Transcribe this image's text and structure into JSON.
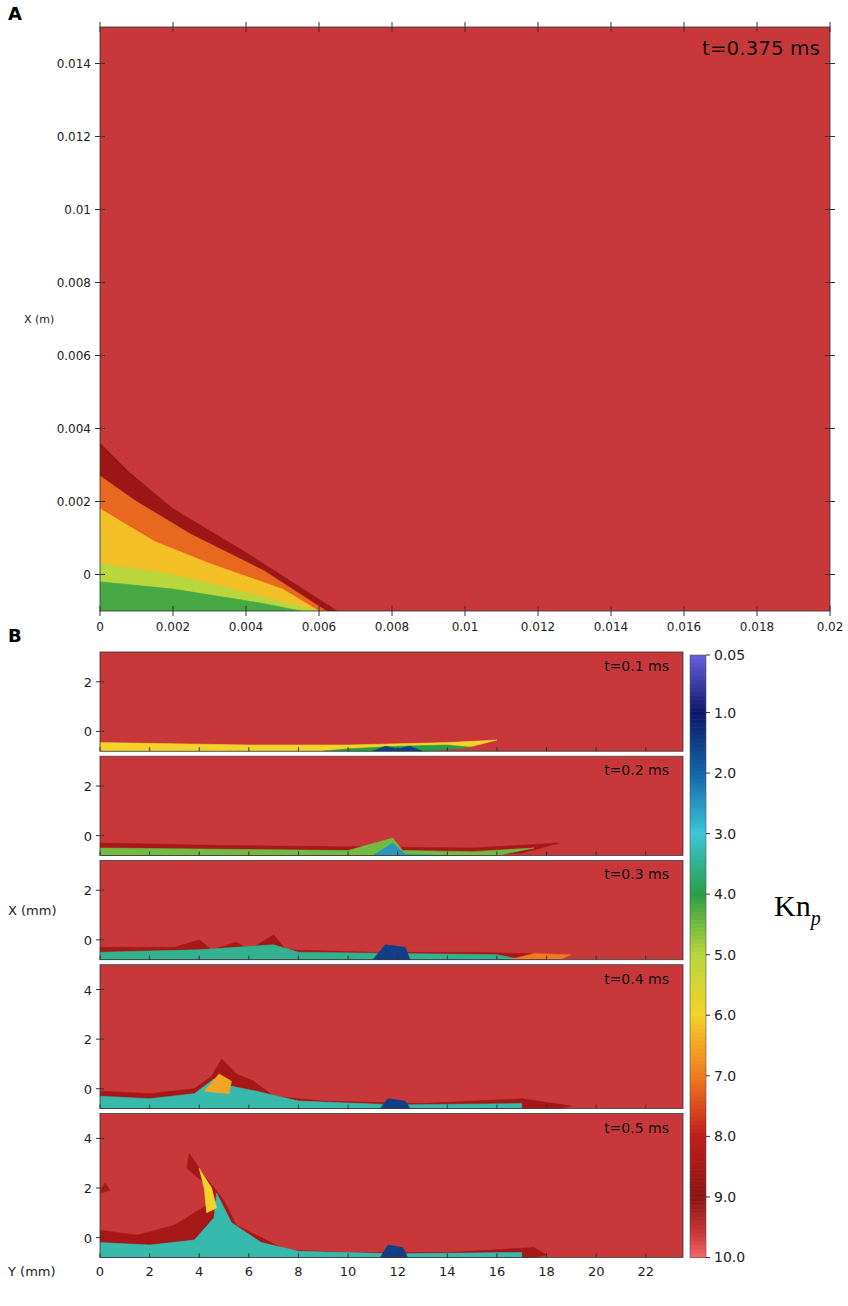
{
  "chart_data": [
    {
      "type": "contour",
      "label": "A",
      "annotation": "t=0.375 ms",
      "ylabel": "X (m)",
      "xlim": [
        0,
        0.02
      ],
      "xticks": [
        0,
        0.002,
        0.004,
        0.006,
        0.008,
        0.01,
        0.012,
        0.014,
        0.016,
        0.018,
        0.02
      ],
      "ylim": [
        -0.001,
        0.015
      ],
      "yticks": [
        0,
        0.002,
        0.004,
        0.006,
        0.008,
        0.01,
        0.012,
        0.014
      ],
      "background": 9.6,
      "regions": [
        {
          "value": 8.7,
          "points": [
            [
              0,
              -0.001
            ],
            [
              0,
              0.0036
            ],
            [
              0.0008,
              0.0028
            ],
            [
              0.002,
              0.0018
            ],
            [
              0.004,
              0.0006
            ],
            [
              0.0065,
              -0.001
            ]
          ]
        },
        {
          "value": 7.2,
          "points": [
            [
              0,
              -0.001
            ],
            [
              0,
              0.0027
            ],
            [
              0.001,
              0.002
            ],
            [
              0.0025,
              0.0011
            ],
            [
              0.0045,
              0.0001
            ],
            [
              0.0062,
              -0.001
            ]
          ]
        },
        {
          "value": 6.2,
          "points": [
            [
              0,
              -0.001
            ],
            [
              0,
              0.0018
            ],
            [
              0.0015,
              0.0009
            ],
            [
              0.003,
              0.0003
            ],
            [
              0.005,
              -0.0004
            ],
            [
              0.006,
              -0.001
            ]
          ]
        },
        {
          "value": 5.0,
          "points": [
            [
              0,
              -0.001
            ],
            [
              0,
              0.0003
            ],
            [
              0.002,
              0
            ],
            [
              0.004,
              -0.0005
            ],
            [
              0.006,
              -0.001
            ]
          ]
        },
        {
          "value": 4.2,
          "points": [
            [
              0,
              -0.001
            ],
            [
              0,
              -0.0002
            ],
            [
              0.002,
              -0.0004
            ],
            [
              0.0045,
              -0.0008
            ],
            [
              0.0055,
              -0.001
            ]
          ]
        }
      ]
    },
    {
      "type": "contour",
      "label": "B",
      "xlabel": "Y (mm)",
      "ylabel": "X (mm)",
      "xlim": [
        0,
        23.5
      ],
      "xticks": [
        0,
        2,
        4,
        6,
        8,
        10,
        12,
        14,
        16,
        18,
        20,
        22
      ],
      "colorbar": {
        "label": "Kn",
        "label_subscript": "p",
        "lim": [
          0.05,
          10
        ],
        "ticks": [
          0.05,
          {
            "value": 1,
            "label": "1.0"
          },
          {
            "value": 2,
            "label": "2.0"
          },
          {
            "value": 3,
            "label": "3.0"
          },
          {
            "value": 4,
            "label": "4.0"
          },
          {
            "value": 5,
            "label": "5.0"
          },
          {
            "value": 6,
            "label": "6.0"
          },
          {
            "value": 7,
            "label": "7.0"
          },
          {
            "value": 8,
            "label": "8.0"
          },
          {
            "value": 9,
            "label": "9.0"
          },
          {
            "value": 10,
            "label": "10.0"
          }
        ]
      },
      "panels": [
        {
          "annotation": "t=0.1 ms",
          "ylim": [
            -0.8,
            3.2
          ],
          "yticks": [
            0,
            2
          ],
          "background": 9.6,
          "regions": [
            {
              "value": 6.0,
              "points": [
                [
                  0,
                  -0.8
                ],
                [
                  0,
                  -0.45
                ],
                [
                  3,
                  -0.5
                ],
                [
                  6,
                  -0.55
                ],
                [
                  10,
                  -0.55
                ],
                [
                  14,
                  -0.45
                ],
                [
                  16,
                  -0.35
                ],
                [
                  15,
                  -0.6
                ],
                [
                  12,
                  -0.8
                ]
              ]
            },
            {
              "value": 4.0,
              "points": [
                [
                  9,
                  -0.8
                ],
                [
                  10,
                  -0.7
                ],
                [
                  12,
                  -0.6
                ],
                [
                  14,
                  -0.55
                ],
                [
                  15,
                  -0.65
                ],
                [
                  13,
                  -0.8
                ]
              ]
            },
            {
              "value": 1.5,
              "points": [
                [
                  11,
                  -0.8
                ],
                [
                  11.5,
                  -0.6
                ],
                [
                  12,
                  -0.7
                ],
                [
                  12.5,
                  -0.6
                ],
                [
                  13,
                  -0.8
                ]
              ]
            }
          ]
        },
        {
          "annotation": "t=0.2 ms",
          "ylim": [
            -0.8,
            3.2
          ],
          "yticks": [
            0,
            2
          ],
          "background": 9.6,
          "regions": [
            {
              "value": 8.5,
              "points": [
                [
                  0,
                  -0.8
                ],
                [
                  0,
                  -0.3
                ],
                [
                  5,
                  -0.4
                ],
                [
                  10,
                  -0.45
                ],
                [
                  15,
                  -0.5
                ],
                [
                  18.5,
                  -0.3
                ],
                [
                  17,
                  -0.7
                ],
                [
                  15,
                  -0.8
                ]
              ]
            },
            {
              "value": 4.5,
              "points": [
                [
                  0,
                  -0.8
                ],
                [
                  0,
                  -0.5
                ],
                [
                  5,
                  -0.55
                ],
                [
                  10,
                  -0.6
                ],
                [
                  11.8,
                  -0.1
                ],
                [
                  12.2,
                  -0.6
                ],
                [
                  15,
                  -0.65
                ],
                [
                  17.5,
                  -0.5
                ],
                [
                  16,
                  -0.8
                ]
              ]
            },
            {
              "value": 2.5,
              "points": [
                [
                  11,
                  -0.8
                ],
                [
                  11.8,
                  -0.3
                ],
                [
                  12.3,
                  -0.75
                ],
                [
                  14,
                  -0.8
                ]
              ]
            }
          ]
        },
        {
          "annotation": "t=0.3 ms",
          "ylim": [
            -0.8,
            3.2
          ],
          "yticks": [
            0,
            2
          ],
          "background": 9.6,
          "regions": [
            {
              "value": 8.5,
              "points": [
                [
                  0,
                  -0.8
                ],
                [
                  0,
                  -0.3
                ],
                [
                  3,
                  -0.3
                ],
                [
                  4,
                  0
                ],
                [
                  4.5,
                  -0.4
                ],
                [
                  5.5,
                  -0.1
                ],
                [
                  6,
                  -0.4
                ],
                [
                  7,
                  0.2
                ],
                [
                  7.5,
                  -0.4
                ],
                [
                  11,
                  -0.5
                ],
                [
                  15,
                  -0.5
                ],
                [
                  19,
                  -0.6
                ],
                [
                  18,
                  -0.8
                ]
              ]
            },
            {
              "value": 3.5,
              "points": [
                [
                  0,
                  -0.8
                ],
                [
                  0,
                  -0.5
                ],
                [
                  4,
                  -0.4
                ],
                [
                  5.5,
                  -0.3
                ],
                [
                  7,
                  -0.2
                ],
                [
                  8,
                  -0.5
                ],
                [
                  12,
                  -0.55
                ],
                [
                  16,
                  -0.6
                ],
                [
                  17,
                  -0.8
                ]
              ]
            },
            {
              "value": 1.5,
              "points": [
                [
                  11,
                  -0.8
                ],
                [
                  11.5,
                  -0.2
                ],
                [
                  12.3,
                  -0.3
                ],
                [
                  12.5,
                  -0.8
                ]
              ]
            },
            {
              "value": 7.0,
              "points": [
                [
                  16.5,
                  -0.8
                ],
                [
                  17.5,
                  -0.55
                ],
                [
                  19,
                  -0.6
                ],
                [
                  18.5,
                  -0.8
                ]
              ]
            }
          ]
        },
        {
          "annotation": "t=0.4 ms",
          "ylim": [
            -0.8,
            5.0
          ],
          "yticks": [
            0,
            2,
            4
          ],
          "background": 9.6,
          "regions": [
            {
              "value": 8.5,
              "points": [
                [
                  0,
                  -0.8
                ],
                [
                  0,
                  -0.1
                ],
                [
                  2,
                  -0.2
                ],
                [
                  3.8,
                  0
                ],
                [
                  4.5,
                  0.5
                ],
                [
                  4.9,
                  1.2
                ],
                [
                  5.5,
                  0.6
                ],
                [
                  6.2,
                  0.3
                ],
                [
                  7,
                  -0.3
                ],
                [
                  9,
                  -0.5
                ],
                [
                  13,
                  -0.6
                ],
                [
                  17,
                  -0.4
                ],
                [
                  19,
                  -0.7
                ],
                [
                  18.5,
                  -0.8
                ]
              ]
            },
            {
              "value": 3.3,
              "points": [
                [
                  0,
                  -0.8
                ],
                [
                  0,
                  -0.3
                ],
                [
                  2,
                  -0.4
                ],
                [
                  3.8,
                  -0.2
                ],
                [
                  4.6,
                  0.4
                ],
                [
                  5.3,
                  0.1
                ],
                [
                  6.3,
                  -0.1
                ],
                [
                  8,
                  -0.5
                ],
                [
                  12,
                  -0.65
                ],
                [
                  17,
                  -0.6
                ],
                [
                  17,
                  -0.8
                ]
              ]
            },
            {
              "value": 6.5,
              "points": [
                [
                  4.2,
                  -0.1
                ],
                [
                  4.8,
                  0.6
                ],
                [
                  5.3,
                  0.3
                ],
                [
                  5.2,
                  -0.2
                ]
              ]
            },
            {
              "value": 1.5,
              "points": [
                [
                  11.3,
                  -0.8
                ],
                [
                  11.6,
                  -0.4
                ],
                [
                  12.3,
                  -0.5
                ],
                [
                  12.5,
                  -0.8
                ]
              ]
            }
          ]
        },
        {
          "annotation": "t=0.5 ms",
          "ylim": [
            -0.8,
            5.0
          ],
          "yticks": [
            0,
            2,
            4
          ],
          "background": 9.6,
          "regions": [
            {
              "value": 8.5,
              "points": [
                [
                  0,
                  -0.8
                ],
                [
                  0,
                  0.3
                ],
                [
                  1.5,
                  0.1
                ],
                [
                  3,
                  0.5
                ],
                [
                  4.3,
                  1.3
                ],
                [
                  4.2,
                  2.2
                ],
                [
                  3.5,
                  2.8
                ],
                [
                  3.6,
                  3.4
                ],
                [
                  4.2,
                  2.5
                ],
                [
                  5,
                  1.5
                ],
                [
                  5.5,
                  0.5
                ],
                [
                  6.5,
                  0
                ],
                [
                  7.5,
                  -0.5
                ],
                [
                  10,
                  -0.6
                ],
                [
                  14,
                  -0.6
                ],
                [
                  17.5,
                  -0.4
                ],
                [
                  18,
                  -0.7
                ],
                [
                  17.5,
                  -0.8
                ]
              ]
            },
            {
              "value": 3.3,
              "points": [
                [
                  0,
                  -0.8
                ],
                [
                  0,
                  -0.2
                ],
                [
                  2,
                  -0.3
                ],
                [
                  3.8,
                  -0.1
                ],
                [
                  4.6,
                  0.8
                ],
                [
                  4.7,
                  1.8
                ],
                [
                  5.3,
                  0.6
                ],
                [
                  6.5,
                  -0.2
                ],
                [
                  8,
                  -0.55
                ],
                [
                  12,
                  -0.65
                ],
                [
                  17,
                  -0.6
                ],
                [
                  17,
                  -0.8
                ]
              ]
            },
            {
              "value": 6.0,
              "points": [
                [
                  4.0,
                  2.8
                ],
                [
                  4.5,
                  2.0
                ],
                [
                  4.7,
                  1.2
                ],
                [
                  4.3,
                  1.0
                ],
                [
                  4.2,
                  2.0
                ]
              ]
            },
            {
              "value": 1.5,
              "points": [
                [
                  11.3,
                  -0.8
                ],
                [
                  11.6,
                  -0.3
                ],
                [
                  12.2,
                  -0.4
                ],
                [
                  12.4,
                  -0.8
                ]
              ]
            },
            {
              "value": 8.5,
              "points": [
                [
                  0,
                  1.8
                ],
                [
                  0.2,
                  2.2
                ],
                [
                  0.4,
                  1.9
                ]
              ]
            }
          ]
        }
      ]
    }
  ]
}
